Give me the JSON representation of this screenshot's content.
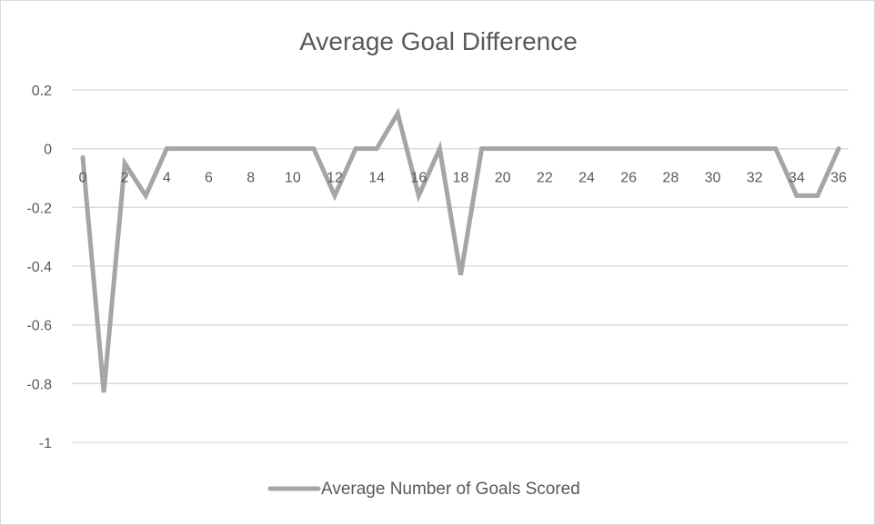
{
  "chart_data": {
    "type": "line",
    "title": "Average Goal Difference",
    "xlabel": "",
    "ylabel": "",
    "ylim": [
      -1,
      0.2
    ],
    "xlim": [
      0,
      36
    ],
    "y_ticks": [
      0.2,
      0,
      -0.2,
      -0.4,
      -0.6,
      -0.8,
      -1
    ],
    "x_ticks": [
      0,
      2,
      4,
      6,
      8,
      10,
      12,
      14,
      16,
      18,
      20,
      22,
      24,
      26,
      28,
      30,
      32,
      34,
      36
    ],
    "grid": true,
    "legend_position": "bottom",
    "x": [
      0,
      1,
      2,
      3,
      4,
      5,
      6,
      7,
      8,
      9,
      10,
      11,
      12,
      13,
      14,
      15,
      16,
      17,
      18,
      19,
      20,
      21,
      22,
      23,
      24,
      25,
      26,
      27,
      28,
      29,
      30,
      31,
      32,
      33,
      34,
      35,
      36
    ],
    "series": [
      {
        "name": "Average Number of Goals Scored",
        "color": "#a5a5a5",
        "values": [
          -0.03,
          -0.83,
          -0.05,
          -0.16,
          0,
          0,
          0,
          0,
          0,
          0,
          0,
          0,
          -0.16,
          0,
          0,
          0.12,
          -0.16,
          0,
          -0.43,
          0,
          0,
          0,
          0,
          0,
          0,
          0,
          0,
          0,
          0,
          0,
          0,
          0,
          0,
          0,
          -0.16,
          -0.16,
          0
        ]
      }
    ]
  }
}
